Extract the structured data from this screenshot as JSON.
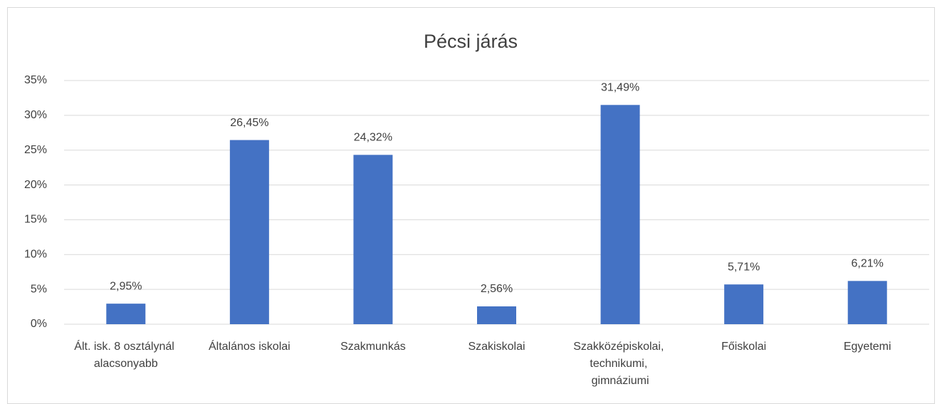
{
  "chart_data": {
    "type": "bar",
    "title": "Pécsi járás",
    "categories": [
      "Ált. isk. 8 osztálynál alacsonyabb",
      "Általános iskolai",
      "Szakmunkás",
      "Szakiskolai",
      "Szakközépiskolai, technikumi, gimnáziumi",
      "Főiskolai",
      "Egyetemi"
    ],
    "values": [
      2.95,
      26.45,
      24.32,
      2.56,
      31.49,
      5.71,
      6.21
    ],
    "value_labels": [
      "2,95%",
      "26,45%",
      "24,32%",
      "2,56%",
      "31,49%",
      "5,71%",
      "6,21%"
    ],
    "color": "#4472c4",
    "ylim": [
      0,
      35
    ],
    "yticks": [
      {
        "value": 0,
        "label": "0%"
      },
      {
        "value": 5,
        "label": "5%"
      },
      {
        "value": 10,
        "label": "10%"
      },
      {
        "value": 15,
        "label": "15%"
      },
      {
        "value": 20,
        "label": "20%"
      },
      {
        "value": 25,
        "label": "25%"
      },
      {
        "value": 30,
        "label": "30%"
      },
      {
        "value": 35,
        "label": "35%"
      }
    ],
    "grid": true
  }
}
